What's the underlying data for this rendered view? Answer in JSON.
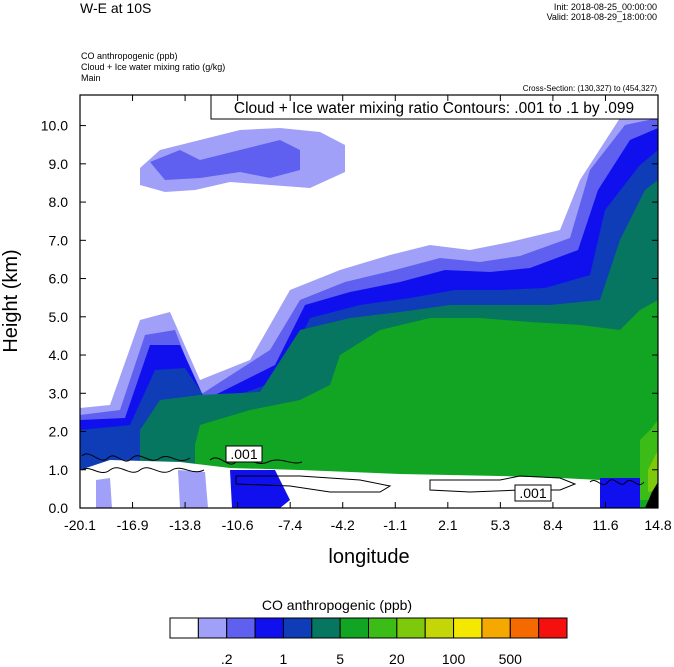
{
  "header": {
    "title": "W-E at 10S",
    "init": "Init: 2018-08-25_00:00:00",
    "valid": "Valid: 2018-08-29_18:00:00",
    "fields": [
      "CO anthropogenic   (ppb)",
      "Cloud + Ice water mixing ratio   (g/kg)",
      "Main"
    ],
    "cross_section": "Cross-Section: (130,327) to (454,327)"
  },
  "chart_data": {
    "type": "area",
    "title": "W-E at 10S",
    "xlabel": "longitude",
    "ylabel": "Height (km)",
    "x_ticks": [
      "-20.1",
      "-16.9",
      "-13.8",
      "-10.6",
      "-7.4",
      "-4.2",
      "-1.1",
      "2.1",
      "5.3",
      "8.4",
      "11.6",
      "14.8"
    ],
    "y_ticks": [
      "0.0",
      "1.0",
      "2.0",
      "3.0",
      "4.0",
      "5.0",
      "6.0",
      "7.0",
      "8.0",
      "9.0",
      "10.0"
    ],
    "xlim": [
      -20.1,
      14.8
    ],
    "ylim": [
      0,
      10.8
    ],
    "contour_info": "Cloud + Ice water mixing ratio Contours: .001 to .1 by .099",
    "contour_labels": [
      ".001",
      ".001"
    ],
    "colorbar": {
      "title": "CO anthropogenic  (ppb)",
      "colors": [
        "#ffffff",
        "#a0a0f8",
        "#5f5ff0",
        "#1010ef",
        "#0e3db7",
        "#077660",
        "#11a523",
        "#3cbc17",
        "#7ec90c",
        "#c4d607",
        "#f5e800",
        "#f5a800",
        "#f56a00",
        "#f50f0f"
      ],
      "tick_labels": [
        ".2",
        "1",
        "5",
        "20",
        "100",
        "500"
      ]
    }
  }
}
